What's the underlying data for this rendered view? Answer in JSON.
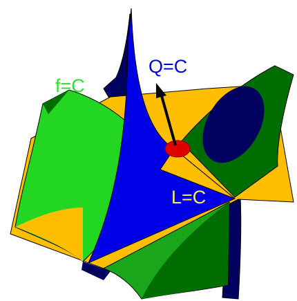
{
  "labels": {
    "f": "f=C",
    "q": "Q=C",
    "l": "L=C"
  }
}
